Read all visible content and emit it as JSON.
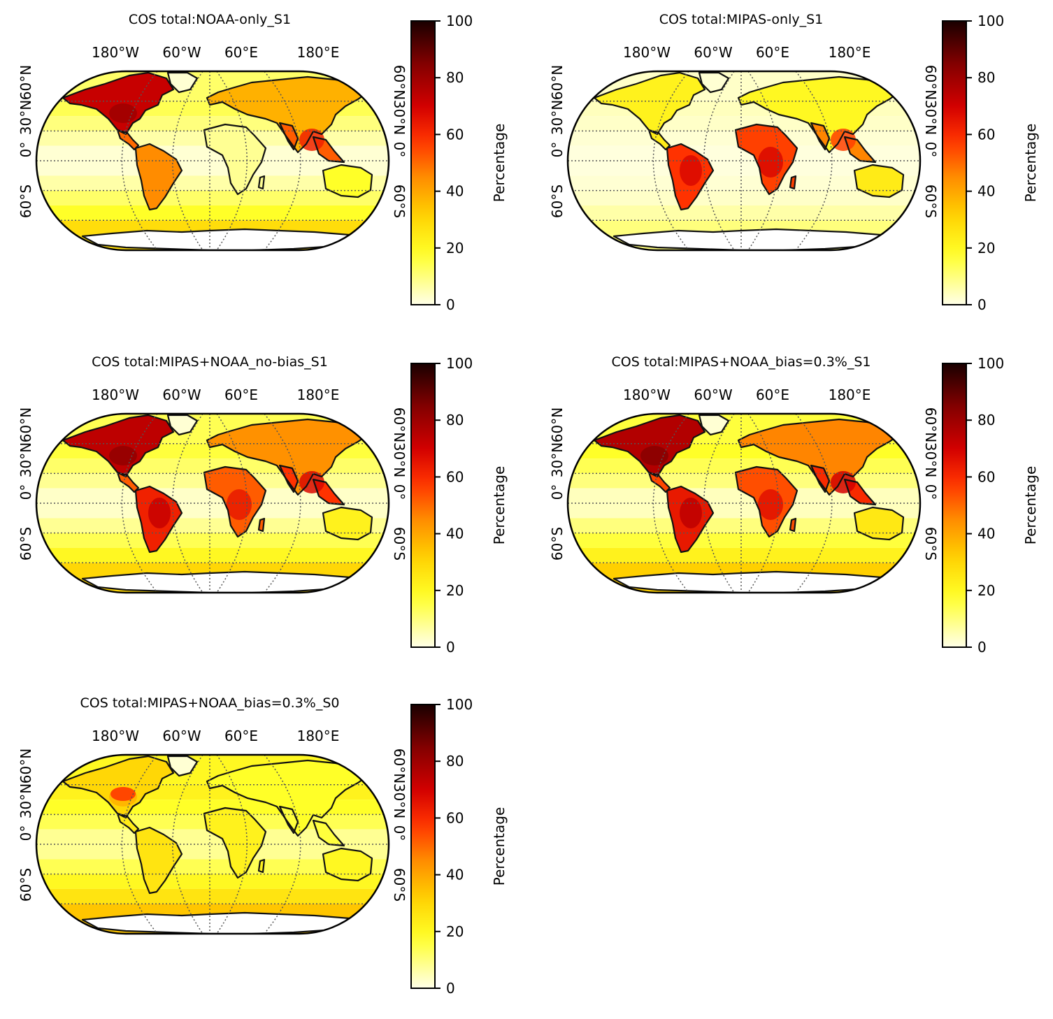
{
  "figure": {
    "panels": [
      {
        "title": "COS total:NOAA-only_S1",
        "scenario": "noaa",
        "colorbar_label": "Percentage"
      },
      {
        "title": "COS total:MIPAS-only_S1",
        "scenario": "mipas",
        "colorbar_label": "Percentage"
      },
      {
        "title": "COS total:MIPAS+NOAA_no-bias_S1",
        "scenario": "combo",
        "colorbar_label": "Percentage"
      },
      {
        "title": "COS total:MIPAS+NOAA_bias=0.3%_S1",
        "scenario": "bias",
        "colorbar_label": "Percentage"
      },
      {
        "title": "COS total:MIPAS+NOAA_bias=0.3%_S0",
        "scenario": "s0",
        "colorbar_label": "Percentage"
      }
    ],
    "lon_labels": [
      "180°W",
      "60°W",
      "60°E",
      "180°E"
    ],
    "lat_labels": [
      "60°N",
      "30°N",
      "0°",
      "60°S"
    ],
    "colorbar": {
      "ticks": [
        "0",
        "20",
        "40",
        "60",
        "80",
        "100"
      ],
      "range": [
        0,
        100
      ],
      "colormap": "hot_r",
      "stops": [
        "#ffffe6",
        "#ffff33",
        "#ffcc00",
        "#ff7f00",
        "#ff2a00",
        "#cc0000",
        "#800000",
        "#1a0000"
      ]
    },
    "colors": {
      "coastline": "#111111",
      "gridline": "#555555",
      "ocean_low": "#ffffe6"
    }
  },
  "chart_data": [
    {
      "type": "heatmap",
      "title": "COS total:NOAA-only_S1",
      "colorbar_label": "Percentage",
      "range": [
        0,
        100
      ],
      "regions": {
        "North America": 70,
        "Central America": 45,
        "South America": 45,
        "Africa": 8,
        "Europe": 40,
        "Russia/Siberia": 38,
        "South & East Asia": 55,
        "Australia": 18,
        "Oceans": 10
      }
    },
    {
      "type": "heatmap",
      "title": "COS total:MIPAS-only_S1",
      "colorbar_label": "Percentage",
      "range": [
        0,
        100
      ],
      "regions": {
        "North America": 20,
        "Central America": 20,
        "South America": 55,
        "Africa": 55,
        "Europe": 20,
        "Russia/Siberia": 20,
        "South & East Asia": 50,
        "Australia": 25,
        "Oceans": 4
      }
    },
    {
      "type": "heatmap",
      "title": "COS total:MIPAS+NOAA_no-bias_S1",
      "colorbar_label": "Percentage",
      "range": [
        0,
        100
      ],
      "regions": {
        "North America": 70,
        "Central America": 50,
        "South America": 60,
        "Africa": 50,
        "Europe": 45,
        "Russia/Siberia": 42,
        "South & East Asia": 60,
        "Australia": 22,
        "Oceans": 12
      }
    },
    {
      "type": "heatmap",
      "title": "COS total:MIPAS+NOAA_bias=0.3%_S1",
      "colorbar_label": "Percentage",
      "range": [
        0,
        100
      ],
      "regions": {
        "North America": 72,
        "Central America": 52,
        "South America": 62,
        "Africa": 52,
        "Europe": 47,
        "Russia/Siberia": 44,
        "South & East Asia": 62,
        "Australia": 24,
        "Oceans": 14
      }
    },
    {
      "type": "heatmap",
      "title": "COS total:MIPAS+NOAA_bias=0.3%_S0",
      "colorbar_label": "Percentage",
      "range": [
        0,
        100
      ],
      "regions": {
        "North America": 30,
        "Central America": 22,
        "South America": 25,
        "Africa": 22,
        "Europe": 20,
        "Russia/Siberia": 16,
        "South & East Asia": 18,
        "Australia": 18,
        "Oceans": 20
      }
    }
  ]
}
